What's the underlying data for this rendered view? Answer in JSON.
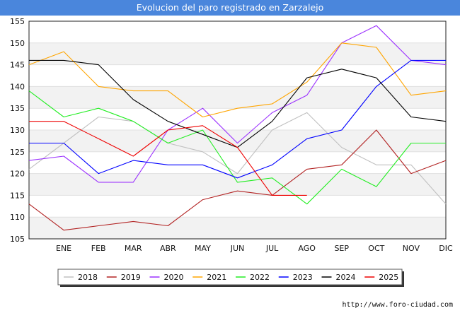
{
  "header": {
    "title": "Evolucion del paro registrado en Zarzalejo"
  },
  "footer": {
    "credit": "http://www.foro-ciudad.com"
  },
  "chart_data": {
    "type": "line",
    "title": "Evolucion del paro registrado en Zarzalejo",
    "xlabel": "",
    "ylabel": "",
    "ylim": [
      105,
      155
    ],
    "y_ticks": [
      105,
      110,
      115,
      120,
      125,
      130,
      135,
      140,
      145,
      150,
      155
    ],
    "categories": [
      "",
      "ENE",
      "FEB",
      "MAR",
      "ABR",
      "MAY",
      "JUN",
      "JUL",
      "AGO",
      "SEP",
      "OCT",
      "NOV",
      "DIC"
    ],
    "grid": "horizontal bands",
    "legend_position": "bottom",
    "series": [
      {
        "name": "2018",
        "color": "#c0c0c0",
        "values": [
          121,
          127,
          133,
          132,
          127,
          125,
          120,
          130,
          134,
          126,
          122,
          122,
          113
        ]
      },
      {
        "name": "2019",
        "color": "#b22222",
        "values": [
          113,
          107,
          108,
          109,
          108,
          114,
          116,
          115,
          121,
          122,
          130,
          120,
          123
        ]
      },
      {
        "name": "2020",
        "color": "#9b30ff",
        "values": [
          123,
          124,
          118,
          118,
          130,
          135,
          127,
          134,
          138,
          150,
          154,
          146,
          145
        ]
      },
      {
        "name": "2021",
        "color": "#ffa500",
        "values": [
          145,
          148,
          140,
          139,
          139,
          133,
          135,
          136,
          141,
          150,
          149,
          138,
          139
        ]
      },
      {
        "name": "2022",
        "color": "#22ee22",
        "values": [
          139,
          133,
          135,
          132,
          127,
          130,
          118,
          119,
          113,
          121,
          117,
          127,
          127
        ]
      },
      {
        "name": "2023",
        "color": "#0000ff",
        "values": [
          127,
          127,
          120,
          123,
          122,
          122,
          119,
          122,
          128,
          130,
          140,
          146,
          146
        ]
      },
      {
        "name": "2024",
        "color": "#000000",
        "values": [
          146,
          146,
          145,
          137,
          132,
          129,
          126,
          132,
          142,
          144,
          142,
          133,
          132
        ]
      },
      {
        "name": "2025",
        "color": "#ee0000",
        "values": [
          132,
          132,
          128,
          124,
          130,
          131,
          126,
          115,
          115,
          null,
          null,
          null,
          null
        ]
      }
    ]
  }
}
